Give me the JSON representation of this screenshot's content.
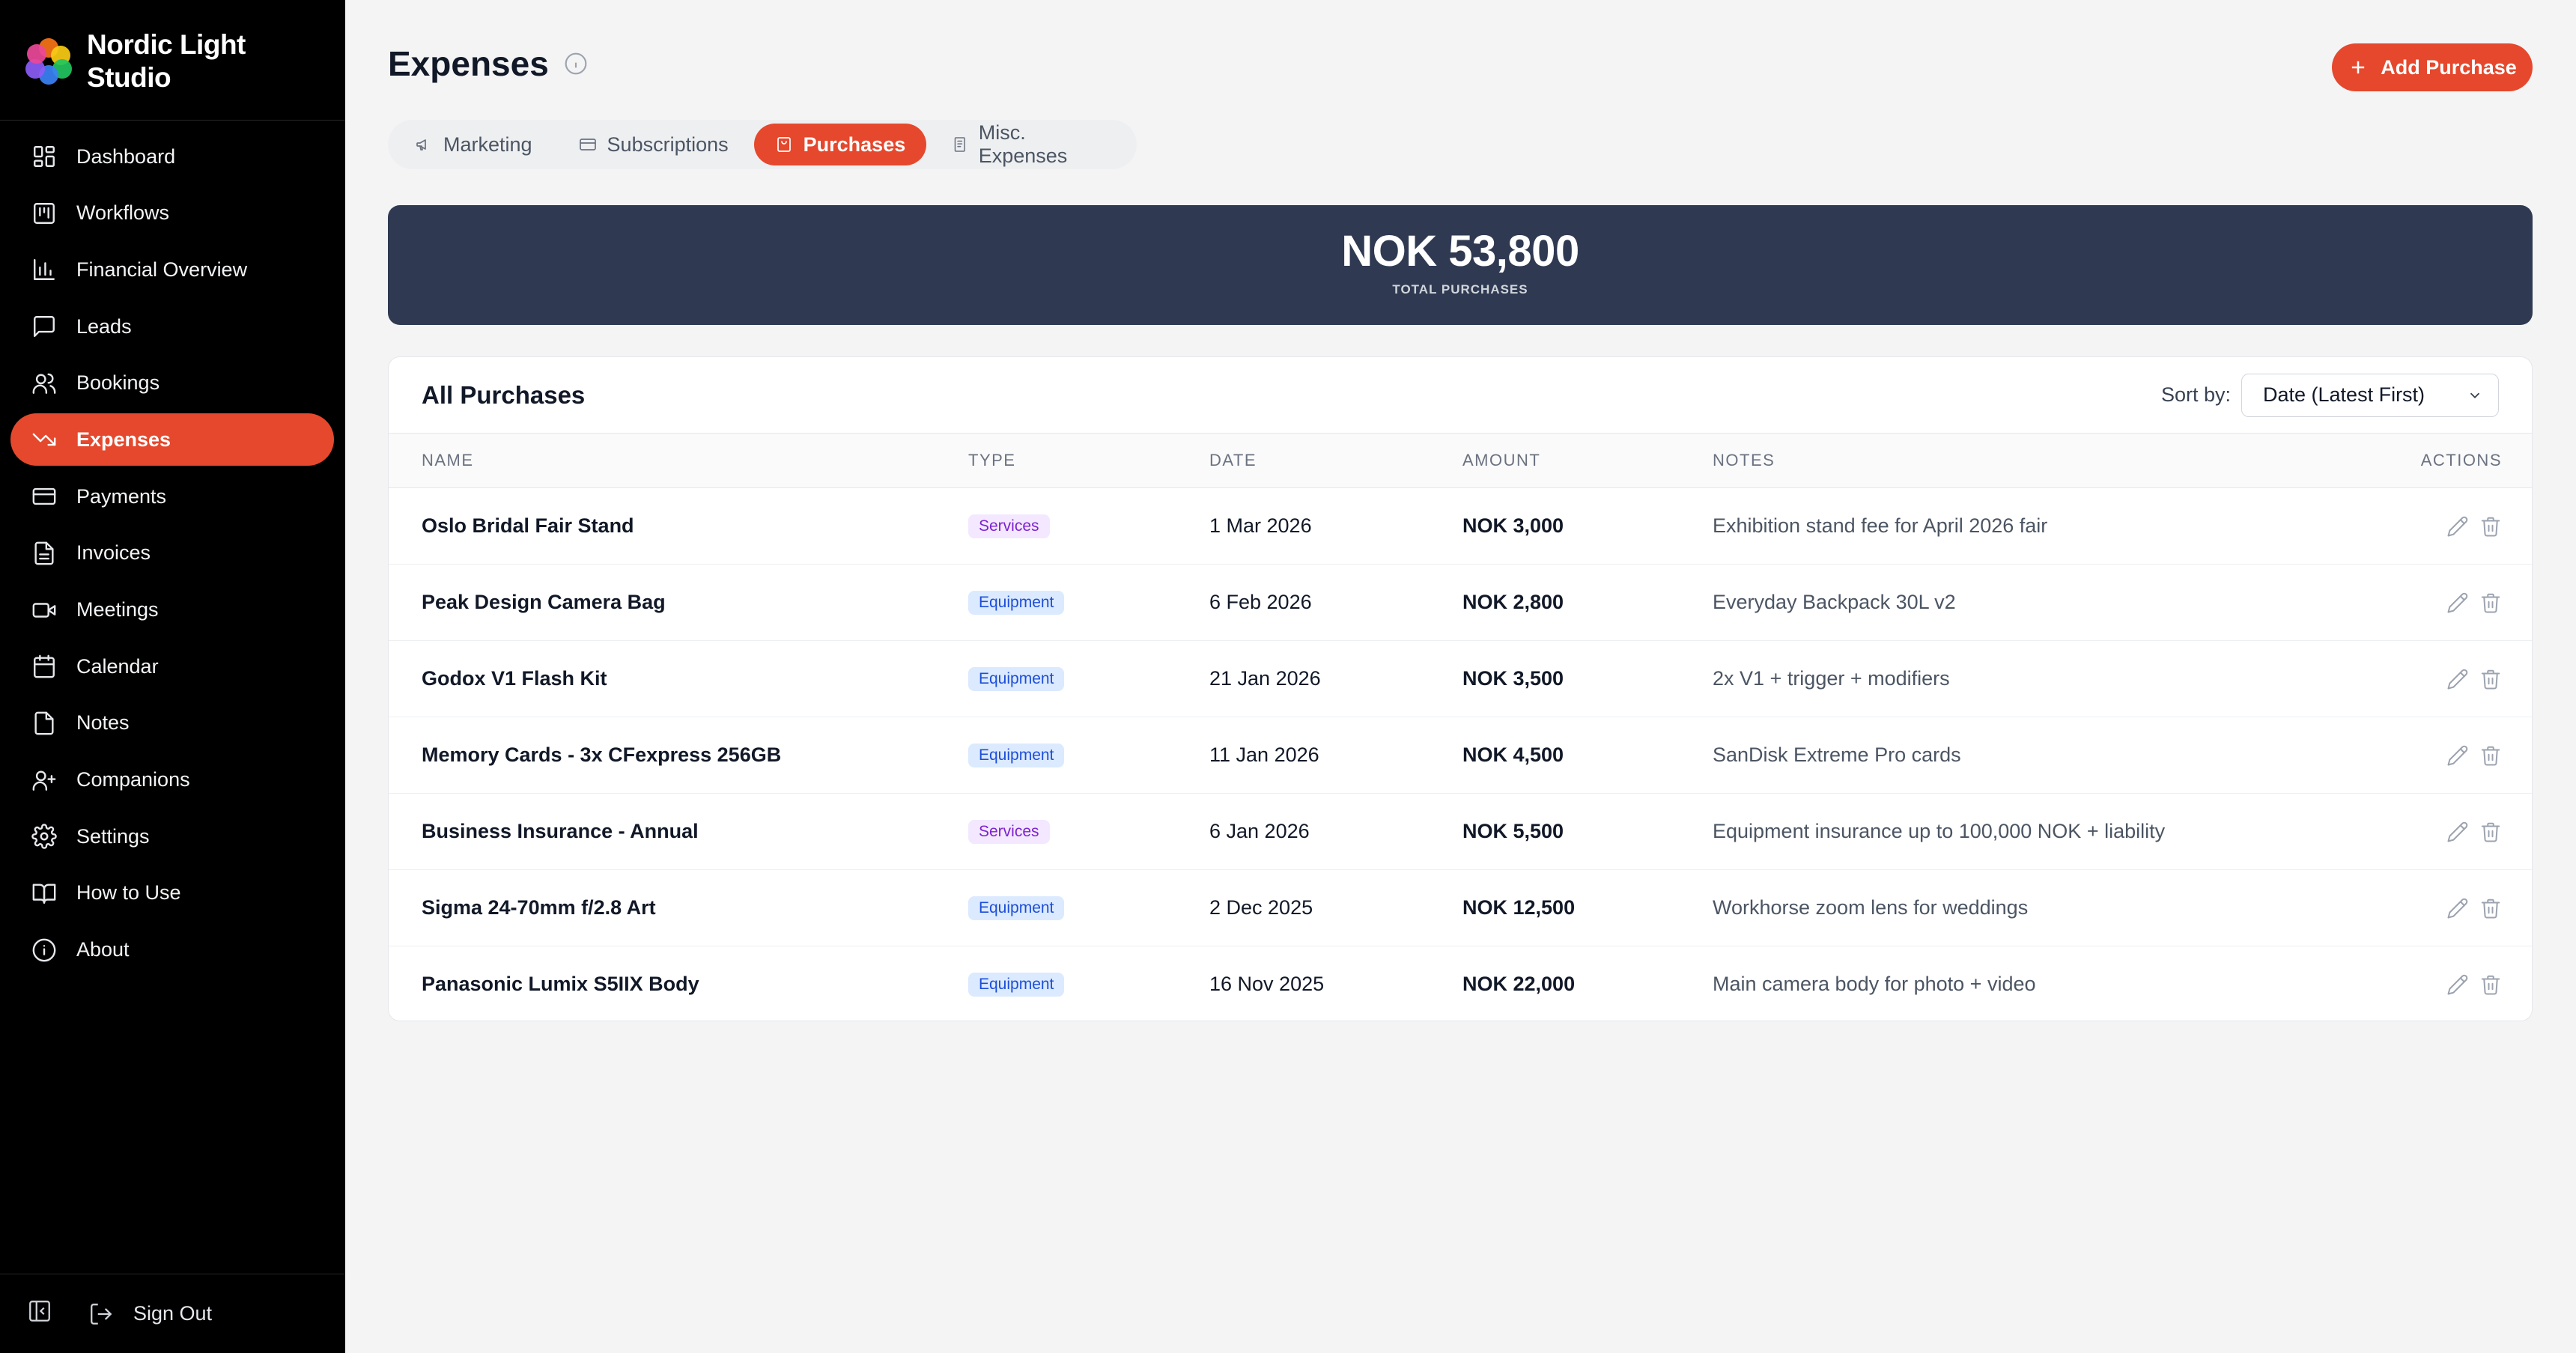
{
  "brand": {
    "name_line1": "Nordic Light",
    "name_line2": "Studio"
  },
  "nav": [
    {
      "label": "Dashboard",
      "icon": "dashboard-icon"
    },
    {
      "label": "Workflows",
      "icon": "kanban-icon"
    },
    {
      "label": "Financial Overview",
      "icon": "bar-chart-icon"
    },
    {
      "label": "Leads",
      "icon": "message-icon"
    },
    {
      "label": "Bookings",
      "icon": "users-icon"
    },
    {
      "label": "Expenses",
      "icon": "trending-down-icon",
      "active": true
    },
    {
      "label": "Payments",
      "icon": "credit-card-icon"
    },
    {
      "label": "Invoices",
      "icon": "file-text-icon"
    },
    {
      "label": "Meetings",
      "icon": "video-icon"
    },
    {
      "label": "Calendar",
      "icon": "calendar-icon"
    },
    {
      "label": "Notes",
      "icon": "file-icon"
    },
    {
      "label": "Companions",
      "icon": "user-plus-icon"
    },
    {
      "label": "Settings",
      "icon": "gear-icon"
    },
    {
      "label": "How to Use",
      "icon": "book-icon"
    },
    {
      "label": "About",
      "icon": "info-icon"
    }
  ],
  "footer": {
    "sign_out": "Sign Out"
  },
  "header": {
    "title": "Expenses",
    "add_button": "Add Purchase"
  },
  "tabs": [
    {
      "label": "Marketing",
      "icon": "megaphone-icon"
    },
    {
      "label": "Subscriptions",
      "icon": "credit-card-icon"
    },
    {
      "label": "Purchases",
      "icon": "receipt-icon",
      "active": true
    },
    {
      "label": "Misc. Expenses",
      "icon": "document-icon"
    }
  ],
  "summary": {
    "value": "NOK 53,800",
    "label": "TOTAL PURCHASES"
  },
  "table": {
    "title": "All Purchases",
    "sort_label": "Sort by:",
    "sort_value": "Date (Latest First)",
    "columns": {
      "name": "NAME",
      "type": "TYPE",
      "date": "DATE",
      "amount": "AMOUNT",
      "notes": "NOTES",
      "actions": "ACTIONS"
    },
    "rows": [
      {
        "name": "Oslo Bridal Fair Stand",
        "type": "Services",
        "date": "1 Mar 2026",
        "amount": "NOK 3,000",
        "notes": "Exhibition stand fee for April 2026 fair"
      },
      {
        "name": "Peak Design Camera Bag",
        "type": "Equipment",
        "date": "6 Feb 2026",
        "amount": "NOK 2,800",
        "notes": "Everyday Backpack 30L v2"
      },
      {
        "name": "Godox V1 Flash Kit",
        "type": "Equipment",
        "date": "21 Jan 2026",
        "amount": "NOK 3,500",
        "notes": "2x V1 + trigger + modifiers"
      },
      {
        "name": "Memory Cards - 3x CFexpress 256GB",
        "type": "Equipment",
        "date": "11 Jan 2026",
        "amount": "NOK 4,500",
        "notes": "SanDisk Extreme Pro cards"
      },
      {
        "name": "Business Insurance - Annual",
        "type": "Services",
        "date": "6 Jan 2026",
        "amount": "NOK 5,500",
        "notes": "Equipment insurance up to 100,000 NOK + liability"
      },
      {
        "name": "Sigma 24-70mm f/2.8 Art",
        "type": "Equipment",
        "date": "2 Dec 2025",
        "amount": "NOK 12,500",
        "notes": "Workhorse zoom lens for weddings"
      },
      {
        "name": "Panasonic Lumix S5IIX Body",
        "type": "Equipment",
        "date": "16 Nov 2025",
        "amount": "NOK 22,000",
        "notes": "Main camera body for photo + video"
      }
    ]
  },
  "colors": {
    "accent": "#e5482d",
    "sidebar": "#000000",
    "summary_card": "#2f3a52"
  }
}
